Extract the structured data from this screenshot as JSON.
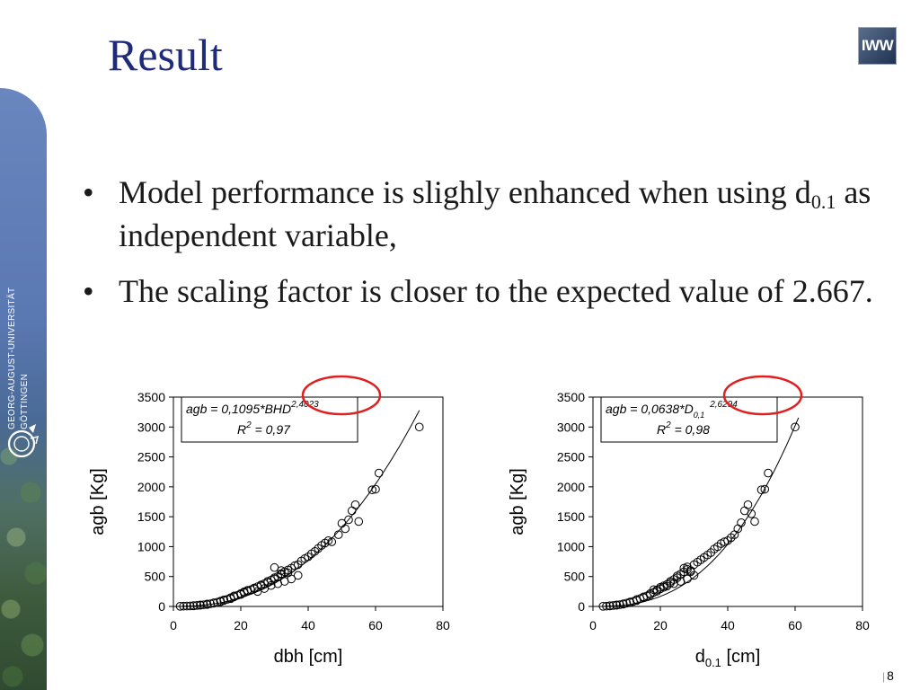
{
  "slide": {
    "title": "Result",
    "logo_text": "IWW",
    "university_line1": "GEORG-AUGUST-UNIVERSITÄT",
    "university_line2": "GÖTTINGEN",
    "page_number": "8",
    "bullets": [
      {
        "text_before": "Model performance is slighly enhanced when using d",
        "sub": "0.1",
        "text_after": " as independent variable,"
      },
      {
        "text_before": "The scaling factor is closer to the expected value of 2.667.",
        "sub": "",
        "text_after": ""
      }
    ],
    "highlight_color": "#e02020"
  },
  "chart_data": [
    {
      "type": "scatter",
      "xlabel": "dbh [cm]",
      "xlabel_sub": "",
      "xlabel_tail": "",
      "ylabel": "agb [Kg]",
      "xlim": [
        0,
        80
      ],
      "ylim": [
        0,
        3500
      ],
      "xticks": [
        0,
        20,
        40,
        60,
        80
      ],
      "yticks": [
        0,
        500,
        1000,
        1500,
        2000,
        2500,
        3000,
        3500
      ],
      "equation_prefix": "agb = 0,1095*BHD",
      "equation_exponent": "2,4023",
      "r2_label": "R",
      "r2_value": " = 0,97",
      "fit": {
        "a": 0.1095,
        "b": 2.4023,
        "x_from": 2,
        "x_to": 73
      },
      "points": [
        [
          2,
          3
        ],
        [
          3,
          4
        ],
        [
          4,
          6
        ],
        [
          5,
          8
        ],
        [
          6,
          10
        ],
        [
          6,
          14
        ],
        [
          7,
          18
        ],
        [
          8,
          20
        ],
        [
          8,
          25
        ],
        [
          9,
          28
        ],
        [
          10,
          32
        ],
        [
          10,
          40
        ],
        [
          11,
          45
        ],
        [
          12,
          55
        ],
        [
          12,
          62
        ],
        [
          13,
          70
        ],
        [
          14,
          80
        ],
        [
          14,
          90
        ],
        [
          15,
          100
        ],
        [
          15,
          110
        ],
        [
          16,
          120
        ],
        [
          17,
          130
        ],
        [
          17,
          145
        ],
        [
          18,
          160
        ],
        [
          18,
          175
        ],
        [
          19,
          185
        ],
        [
          20,
          200
        ],
        [
          20,
          215
        ],
        [
          21,
          230
        ],
        [
          21,
          245
        ],
        [
          22,
          255
        ],
        [
          22,
          270
        ],
        [
          23,
          280
        ],
        [
          24,
          295
        ],
        [
          24,
          310
        ],
        [
          25,
          330
        ],
        [
          26,
          345
        ],
        [
          26,
          360
        ],
        [
          27,
          380
        ],
        [
          28,
          400
        ],
        [
          28,
          420
        ],
        [
          29,
          440
        ],
        [
          30,
          460
        ],
        [
          30,
          480
        ],
        [
          31,
          500
        ],
        [
          32,
          530
        ],
        [
          32,
          550
        ],
        [
          33,
          580
        ],
        [
          34,
          610
        ],
        [
          35,
          640
        ],
        [
          36,
          680
        ],
        [
          37,
          700
        ],
        [
          38,
          760
        ],
        [
          39,
          800
        ],
        [
          40,
          830
        ],
        [
          41,
          880
        ],
        [
          42,
          920
        ],
        [
          43,
          970
        ],
        [
          44,
          1020
        ],
        [
          45,
          1060
        ],
        [
          46,
          1100
        ],
        [
          47,
          1080
        ],
        [
          49,
          1200
        ],
        [
          50,
          1390
        ],
        [
          51,
          1300
        ],
        [
          52,
          1450
        ],
        [
          53,
          1600
        ],
        [
          54,
          1700
        ],
        [
          55,
          1420
        ],
        [
          59,
          1950
        ],
        [
          60,
          1960
        ],
        [
          61,
          2230
        ],
        [
          73,
          3000
        ],
        [
          25,
          250
        ],
        [
          27,
          300
        ],
        [
          29,
          350
        ],
        [
          31,
          380
        ],
        [
          33,
          420
        ],
        [
          35,
          460
        ],
        [
          37,
          520
        ],
        [
          30,
          650
        ],
        [
          32,
          600
        ],
        [
          34,
          560
        ]
      ]
    },
    {
      "type": "scatter",
      "xlabel": "d",
      "xlabel_sub": "0.1",
      "xlabel_tail": " [cm]",
      "ylabel": "agb [Kg]",
      "xlim": [
        0,
        80
      ],
      "ylim": [
        0,
        3500
      ],
      "xticks": [
        0,
        20,
        40,
        60,
        80
      ],
      "yticks": [
        0,
        500,
        1000,
        1500,
        2000,
        2500,
        3000,
        3500
      ],
      "equation_prefix": "agb = 0,0638*D",
      "equation_sub": "0,1",
      "equation_exponent": "2,6294",
      "r2_label": "R",
      "r2_value": " = 0,98",
      "fit": {
        "a": 0.0638,
        "b": 2.6294,
        "x_from": 3,
        "x_to": 61
      },
      "points": [
        [
          3,
          3
        ],
        [
          4,
          5
        ],
        [
          5,
          8
        ],
        [
          5,
          12
        ],
        [
          6,
          16
        ],
        [
          7,
          20
        ],
        [
          7,
          26
        ],
        [
          8,
          30
        ],
        [
          9,
          38
        ],
        [
          9,
          45
        ],
        [
          10,
          55
        ],
        [
          11,
          65
        ],
        [
          11,
          75
        ],
        [
          12,
          85
        ],
        [
          13,
          100
        ],
        [
          13,
          115
        ],
        [
          14,
          130
        ],
        [
          15,
          145
        ],
        [
          15,
          160
        ],
        [
          16,
          175
        ],
        [
          17,
          195
        ],
        [
          17,
          215
        ],
        [
          18,
          235
        ],
        [
          19,
          255
        ],
        [
          19,
          275
        ],
        [
          20,
          295
        ],
        [
          21,
          320
        ],
        [
          21,
          345
        ],
        [
          22,
          370
        ],
        [
          23,
          395
        ],
        [
          23,
          420
        ],
        [
          24,
          450
        ],
        [
          25,
          480
        ],
        [
          25,
          510
        ],
        [
          26,
          540
        ],
        [
          27,
          580
        ],
        [
          28,
          620
        ],
        [
          28,
          660
        ],
        [
          29,
          600
        ],
        [
          30,
          700
        ],
        [
          31,
          740
        ],
        [
          32,
          780
        ],
        [
          33,
          820
        ],
        [
          34,
          860
        ],
        [
          35,
          900
        ],
        [
          36,
          960
        ],
        [
          37,
          1000
        ],
        [
          38,
          1050
        ],
        [
          39,
          1080
        ],
        [
          40,
          1100
        ],
        [
          41,
          1150
        ],
        [
          42,
          1200
        ],
        [
          43,
          1300
        ],
        [
          44,
          1400
        ],
        [
          45,
          1600
        ],
        [
          46,
          1700
        ],
        [
          47,
          1550
        ],
        [
          48,
          1420
        ],
        [
          50,
          1950
        ],
        [
          51,
          1960
        ],
        [
          52,
          2230
        ],
        [
          60,
          3000
        ],
        [
          18,
          280
        ],
        [
          20,
          320
        ],
        [
          22,
          340
        ],
        [
          24,
          380
        ],
        [
          26,
          420
        ],
        [
          28,
          460
        ],
        [
          30,
          520
        ],
        [
          27,
          640
        ],
        [
          29,
          580
        ]
      ]
    }
  ]
}
